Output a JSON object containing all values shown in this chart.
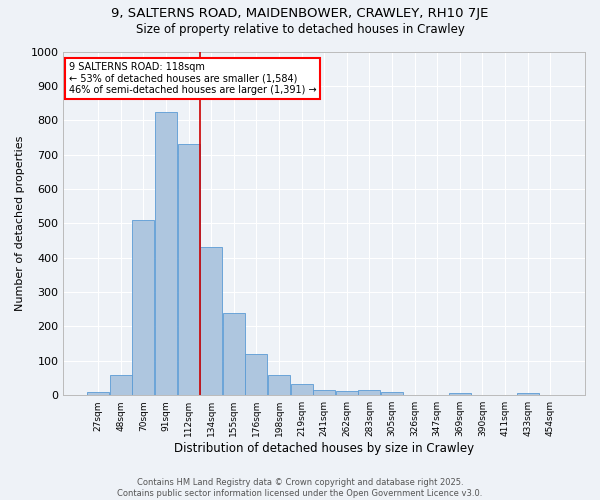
{
  "title1": "9, SALTERNS ROAD, MAIDENBOWER, CRAWLEY, RH10 7JE",
  "title2": "Size of property relative to detached houses in Crawley",
  "xlabel": "Distribution of detached houses by size in Crawley",
  "ylabel": "Number of detached properties",
  "categories": [
    "27sqm",
    "48sqm",
    "70sqm",
    "91sqm",
    "112sqm",
    "134sqm",
    "155sqm",
    "176sqm",
    "198sqm",
    "219sqm",
    "241sqm",
    "262sqm",
    "283sqm",
    "305sqm",
    "326sqm",
    "347sqm",
    "369sqm",
    "390sqm",
    "411sqm",
    "433sqm",
    "454sqm"
  ],
  "values": [
    10,
    60,
    510,
    825,
    730,
    430,
    240,
    120,
    58,
    32,
    15,
    12,
    15,
    8,
    0,
    0,
    5,
    0,
    0,
    5,
    0
  ],
  "bar_color": "#aec6df",
  "bar_edge_color": "#5b9bd5",
  "annotation_text": "9 SALTERNS ROAD: 118sqm\n← 53% of detached houses are smaller (1,584)\n46% of semi-detached houses are larger (1,391) →",
  "vline_color": "#cc0000",
  "ylim": [
    0,
    1000
  ],
  "yticks": [
    0,
    100,
    200,
    300,
    400,
    500,
    600,
    700,
    800,
    900,
    1000
  ],
  "background_color": "#eef2f7",
  "footer_text": "Contains HM Land Registry data © Crown copyright and database right 2025.\nContains public sector information licensed under the Open Government Licence v3.0.",
  "grid_color": "#ffffff",
  "bar_width": 0.97,
  "vline_x_index": 4.5
}
